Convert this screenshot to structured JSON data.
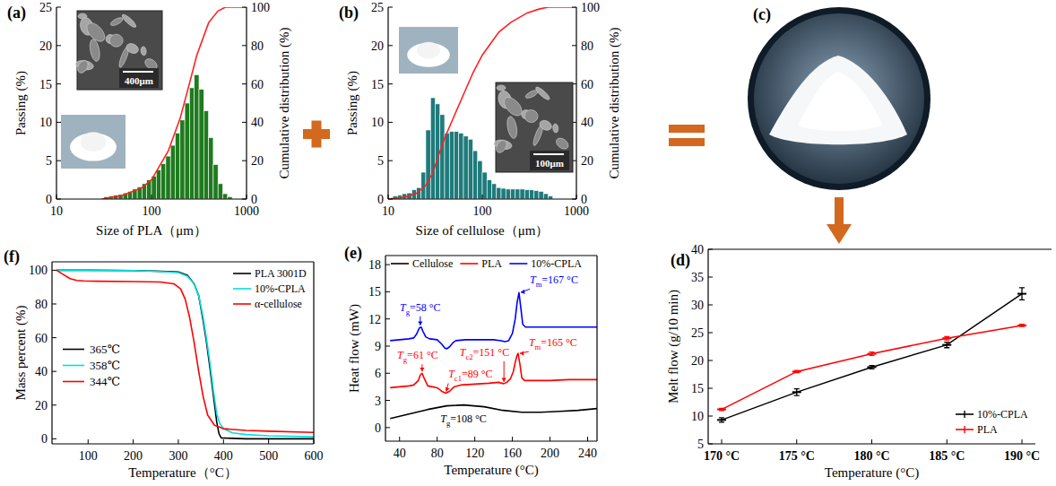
{
  "chart_data": [
    {
      "type": "histogram",
      "title": "(a)",
      "x_label": "Size of PLA（μm）",
      "y_label": "Passing (%)",
      "y2_label": "Cumulative distribution (%)",
      "log": "x",
      "xlim": [
        10,
        1000
      ],
      "xticks": [
        10,
        100,
        1000
      ],
      "ylim": [
        0,
        25
      ],
      "yticks": [
        0,
        5,
        10,
        15,
        20,
        25
      ],
      "y2lim": [
        0,
        100
      ],
      "y2ticks": [
        0,
        20,
        40,
        60,
        80,
        100
      ],
      "bins": [
        31.6,
        35.5,
        39.8,
        44.7,
        50.1,
        56.2,
        63.1,
        70.8,
        79.4,
        89.1,
        100,
        112.2,
        125.9,
        141.3,
        158.5,
        177.8,
        199.5,
        223.9,
        251.2,
        281.8,
        316.2,
        354.8,
        398.1,
        446.7,
        501.2,
        562.3,
        631.0,
        707.9
      ],
      "values": [
        0.3,
        0.4,
        0.5,
        0.6,
        0.8,
        1.0,
        1.3,
        1.6,
        2.0,
        2.5,
        3.0,
        3.8,
        4.6,
        5.6,
        7.0,
        8.6,
        10.3,
        12.5,
        14.5,
        16.2,
        14.3,
        11.5,
        8.0,
        4.5,
        2.0,
        0.7,
        0.3
      ],
      "color": "#1e7b1e",
      "cumulative": {
        "x": [
          30,
          50,
          80,
          100,
          150,
          200,
          250,
          300,
          400,
          500,
          600,
          700,
          1000
        ],
        "values": [
          0,
          2,
          6,
          10,
          25,
          42,
          60,
          75,
          92,
          98,
          100,
          100,
          100
        ],
        "color": "#ff2020",
        "axis": "y2"
      },
      "annotations": [
        "400μm"
      ]
    },
    {
      "type": "histogram",
      "title": "(b)",
      "x_label": "Size of cellulose（μm）",
      "y_label": "Passing (%)",
      "y2_label": "Cumulative distribution (%)",
      "log": "x",
      "xlim": [
        10,
        1000
      ],
      "xticks": [
        10,
        100,
        1000
      ],
      "ylim": [
        0,
        25
      ],
      "yticks": [
        0,
        5,
        10,
        15,
        20,
        25
      ],
      "y2lim": [
        0,
        100
      ],
      "y2ticks": [
        0,
        20,
        40,
        60,
        80,
        100
      ],
      "bins": [
        11.2,
        12.6,
        14.1,
        15.8,
        17.8,
        20.0,
        22.4,
        25.1,
        28.2,
        31.6,
        35.5,
        39.8,
        44.7,
        50.1,
        56.2,
        63.1,
        70.8,
        79.4,
        89.1,
        100,
        112.2,
        125.9,
        141.3,
        158.5,
        177.8,
        199.5,
        223.9,
        251.2,
        281.8,
        316.2,
        354.8,
        398.1,
        446.7,
        501.2,
        562.3
      ],
      "values": [
        0.4,
        0.5,
        0.7,
        0.8,
        1.2,
        1.5,
        3.5,
        9.0,
        13.2,
        12.4,
        11.0,
        8.6,
        8.8,
        8.8,
        8.6,
        8.2,
        7.8,
        6.3,
        5.0,
        3.5,
        2.5,
        2.0,
        1.5,
        1.4,
        1.3,
        1.3,
        1.3,
        1.3,
        1.2,
        1.2,
        1.1,
        1.0,
        0.7,
        0.4
      ],
      "color": "#1f7b7b",
      "cumulative": {
        "x": [
          10,
          15,
          20,
          25,
          30,
          35,
          40,
          50,
          60,
          80,
          100,
          150,
          200,
          300,
          400,
          500,
          700,
          1000
        ],
        "values": [
          0,
          1,
          3,
          7,
          14,
          24,
          32,
          43,
          52,
          66,
          75,
          87,
          92,
          97,
          99,
          100,
          100,
          100
        ],
        "color": "#ff2020",
        "axis": "y2"
      },
      "annotations": [
        "100μm"
      ]
    },
    {
      "type": "line",
      "title": "(d)",
      "x_label": "Temperature (°C)",
      "y_label": "Melt flow (g/10 min)",
      "categories": [
        "170 °C",
        "175 °C",
        "180 °C",
        "185 °C",
        "190 °C"
      ],
      "ylim": [
        5,
        40
      ],
      "yticks": [
        5,
        10,
        15,
        20,
        25,
        30,
        35,
        40
      ],
      "legend": "lower right",
      "series": [
        {
          "name": "10%-CPLA",
          "color": "#000000",
          "marker": "dash",
          "values": [
            9.3,
            14.3,
            18.8,
            22.8,
            32.0
          ],
          "errors": [
            0.4,
            0.6,
            0.3,
            0.5,
            1.1
          ]
        },
        {
          "name": "PLA",
          "color": "#ff0000",
          "marker": "dash",
          "values": [
            11.2,
            18.0,
            21.2,
            24.0,
            26.3
          ],
          "errors": [
            0.2,
            0.2,
            0.3,
            0.3,
            0.2
          ]
        }
      ]
    },
    {
      "type": "line",
      "title": "(e)",
      "x_label": "Temperature (°C)",
      "y_label": "Heat flow (mW)",
      "xlim": [
        25,
        250
      ],
      "xticks": [
        40,
        80,
        120,
        160,
        200,
        240
      ],
      "ylim": [
        -1.5,
        19
      ],
      "yticks": [
        0,
        3,
        6,
        9,
        12,
        15,
        18
      ],
      "legend": "top",
      "series": [
        {
          "name": "Cellulose",
          "color": "#000000",
          "x": [
            30,
            50,
            70,
            90,
            108,
            130,
            150,
            170,
            190,
            210,
            230,
            250
          ],
          "values": [
            1.0,
            1.5,
            2.0,
            2.4,
            2.5,
            2.3,
            1.9,
            1.7,
            1.7,
            1.8,
            1.9,
            2.1
          ]
        },
        {
          "name": "PLA",
          "color": "#ff0000",
          "x": [
            30,
            40,
            50,
            55,
            60,
            62,
            64,
            66,
            70,
            75,
            80,
            85,
            89,
            93,
            98,
            105,
            120,
            135,
            145,
            149,
            151,
            154,
            158,
            161,
            163,
            165,
            166,
            168,
            170,
            173,
            180,
            200,
            220,
            250
          ],
          "values": [
            4.4,
            4.5,
            4.6,
            4.7,
            5.2,
            5.8,
            6.0,
            5.5,
            4.6,
            4.5,
            4.4,
            4.0,
            3.8,
            4.0,
            4.5,
            4.7,
            4.8,
            4.9,
            5.0,
            4.9,
            4.85,
            5.0,
            5.4,
            6.2,
            7.2,
            8.0,
            8.2,
            7.0,
            5.5,
            5.2,
            5.2,
            5.2,
            5.3,
            5.3
          ]
        },
        {
          "name": "10%-CPLA",
          "color": "#0000ff",
          "x": [
            30,
            40,
            50,
            55,
            58,
            61,
            63,
            65,
            68,
            72,
            80,
            85,
            88,
            90,
            93,
            97,
            100,
            110,
            120,
            130,
            140,
            148,
            152,
            156,
            160,
            163,
            165,
            167,
            169,
            171,
            174,
            180,
            200,
            220,
            250
          ],
          "values": [
            9.6,
            9.7,
            9.8,
            9.9,
            10.3,
            11.0,
            11.1,
            10.6,
            10.0,
            9.8,
            9.7,
            9.2,
            8.8,
            8.7,
            8.9,
            9.4,
            9.6,
            9.7,
            9.7,
            9.7,
            9.7,
            9.6,
            9.5,
            9.6,
            10.4,
            12.0,
            13.8,
            14.9,
            13.2,
            11.4,
            11.1,
            11.1,
            11.1,
            11.1,
            11.1
          ]
        }
      ],
      "annotations": [
        {
          "text": "Tg=58 °C",
          "x": 62,
          "y": 11.1,
          "color": "#0000ff"
        },
        {
          "text": "Tg=61 °C",
          "x": 64,
          "y": 6.0,
          "color": "#ff0000"
        },
        {
          "text": "Tc1=89 °C",
          "x": 89,
          "y": 3.8,
          "color": "#ff0000"
        },
        {
          "text": "Tc2=151 °C",
          "x": 151,
          "y": 4.85,
          "color": "#ff0000"
        },
        {
          "text": "Tm=165 °C",
          "x": 166,
          "y": 8.2,
          "color": "#ff0000"
        },
        {
          "text": "Tm=167 °C",
          "x": 167,
          "y": 14.9,
          "color": "#0000ff"
        },
        {
          "text": "Tg=108 °C",
          "x": 108,
          "y": 2.5,
          "color": "#000000"
        }
      ]
    },
    {
      "type": "line",
      "title": "(f)",
      "x_label": "Temperature（°C）",
      "y_label": "Mass percent (%)",
      "xlim": [
        20,
        600
      ],
      "xticks": [
        100,
        200,
        300,
        400,
        500,
        600
      ],
      "ylim": [
        -3,
        105
      ],
      "yticks": [
        0,
        20,
        40,
        60,
        80,
        100
      ],
      "legend": "upper right",
      "series": [
        {
          "name": "PLA 3001D",
          "color": "#000000",
          "x": [
            30,
            100,
            200,
            250,
            300,
            320,
            335,
            345,
            355,
            362,
            370,
            378,
            385,
            390,
            395,
            450,
            500,
            600
          ],
          "values": [
            100,
            100,
            99.8,
            99.5,
            99,
            97,
            92,
            85,
            70,
            58,
            42,
            25,
            10,
            3,
            0.5,
            0,
            0,
            0
          ]
        },
        {
          "name": "10%-CPLA",
          "color": "#00e0e0",
          "x": [
            30,
            100,
            200,
            250,
            300,
            320,
            335,
            345,
            355,
            362,
            370,
            378,
            385,
            392,
            400,
            420,
            450,
            500,
            600
          ],
          "values": [
            100,
            100,
            99.8,
            99.4,
            98.6,
            96.5,
            92,
            85,
            72,
            60,
            45,
            28,
            15,
            9,
            6,
            3.5,
            2.5,
            1.8,
            1.2
          ]
        },
        {
          "name": "α-cellulose",
          "color": "#ff0000",
          "x": [
            30,
            45,
            60,
            75,
            90,
            120,
            200,
            260,
            290,
            305,
            315,
            325,
            335,
            345,
            355,
            365,
            380,
            400,
            450,
            500,
            600
          ],
          "values": [
            100,
            97.5,
            95,
            94,
            93.7,
            93.5,
            93.3,
            93,
            92,
            89,
            83,
            72,
            57,
            40,
            25,
            14,
            8,
            6,
            5,
            4.5,
            3.8
          ]
        }
      ],
      "annotations": [
        {
          "text": "365℃",
          "color": "#000000"
        },
        {
          "text": "358℃",
          "color": "#00e0e0"
        },
        {
          "text": "344℃",
          "color": "#ff0000"
        }
      ]
    }
  ],
  "photo": {
    "label": "(c)"
  }
}
